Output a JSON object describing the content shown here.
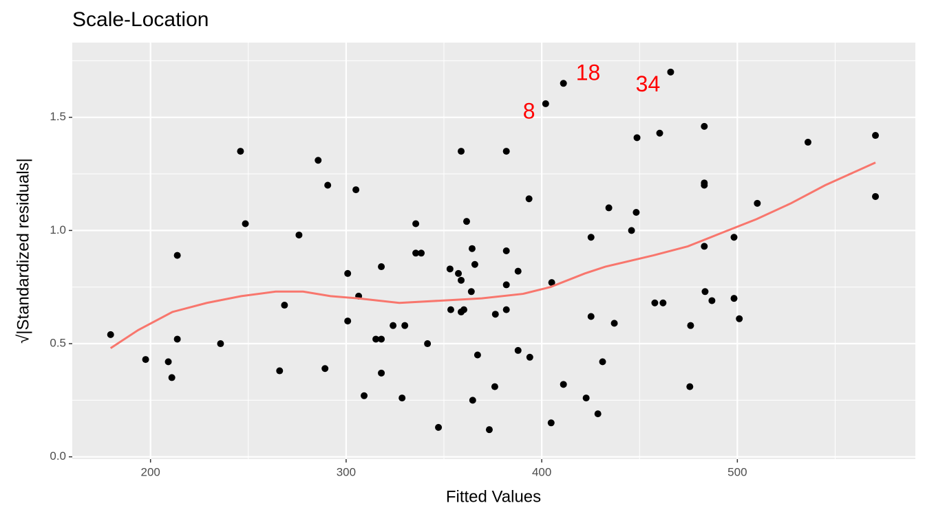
{
  "chart_data": {
    "type": "scatter",
    "title": "Scale-Location",
    "x_label": "Fitted Values",
    "y_label": "√|Standardized residuals|",
    "xlim": [
      160,
      591
    ],
    "ylim": [
      -0.01,
      1.83
    ],
    "xticks": [
      200,
      300,
      400,
      500
    ],
    "yticks": [
      {
        "value": 0,
        "label": "0.0"
      },
      {
        "value": 0.5,
        "label": "0.5"
      },
      {
        "value": 1,
        "label": "1.0"
      },
      {
        "value": 1.5,
        "label": "1.5"
      }
    ],
    "minor_xticks": [
      250,
      350,
      450,
      550
    ],
    "minor_yticks": [
      0.25,
      0.75,
      1.25,
      1.75
    ],
    "grid": true,
    "series": [
      {
        "type": "scatter",
        "color": "#000000",
        "x": [
          179.6,
          197.5,
          209.1,
          210.9,
          213.7,
          213.7,
          235.8,
          246,
          248.5,
          266,
          268.5,
          275.9,
          285.7,
          289.2,
          290.6,
          300.8,
          300.8,
          305,
          306.4,
          309.2,
          315.2,
          318,
          318,
          318,
          324,
          328.6,
          330,
          335.6,
          335.6,
          338.4,
          341.6,
          347.2,
          353.1,
          353.5,
          357.4,
          358.8,
          358.8,
          358.8,
          360.2,
          361.6,
          364,
          364.4,
          364.7,
          365.8,
          367.2,
          373.2,
          376,
          376.3,
          381.9,
          381.9,
          381.9,
          381.9,
          387.9,
          387.9,
          393.5,
          393.9,
          402,
          405.1,
          404.8,
          411.1,
          411.1,
          422.7,
          425.2,
          425.2,
          428.7,
          431.1,
          434.3,
          437.1,
          445.9,
          448.3,
          448.7,
          457.8,
          460.3,
          462,
          465.9,
          475.7,
          476.1,
          483.1,
          483.1,
          483.1,
          483.1,
          483.5,
          487,
          498.3,
          498.3,
          501,
          510.2,
          536.1,
          570.6,
          570.6
        ],
        "values": [
          0.54,
          0.43,
          0.42,
          0.35,
          0.52,
          0.89,
          0.5,
          1.35,
          1.03,
          0.38,
          0.67,
          0.98,
          1.31,
          0.39,
          1.2,
          0.81,
          0.6,
          1.18,
          0.71,
          0.27,
          0.52,
          0.52,
          0.84,
          0.37,
          0.58,
          0.26,
          0.58,
          1.03,
          0.9,
          0.9,
          0.5,
          0.13,
          0.83,
          0.65,
          0.81,
          1.35,
          0.78,
          0.64,
          0.65,
          1.04,
          0.73,
          0.92,
          0.25,
          0.85,
          0.45,
          0.12,
          0.31,
          0.63,
          1.35,
          0.91,
          0.76,
          0.65,
          0.82,
          0.47,
          1.14,
          0.44,
          1.56,
          0.77,
          0.15,
          1.65,
          0.32,
          0.26,
          0.97,
          0.62,
          0.19,
          0.42,
          1.1,
          0.59,
          1,
          1.08,
          1.41,
          0.68,
          1.43,
          0.68,
          1.7,
          0.31,
          0.58,
          1.46,
          1.21,
          1.2,
          0.93,
          0.73,
          0.69,
          0.97,
          0.7,
          0.61,
          1.12,
          1.39,
          1.42,
          1.15
        ]
      },
      {
        "type": "line",
        "color": "#F8766D",
        "x": [
          179.6,
          193.7,
          211.2,
          228.8,
          246.4,
          264,
          278,
          292,
          306.1,
          327.2,
          348.3,
          369.3,
          390.4,
          404.4,
          422,
          432.5,
          457.1,
          474.7,
          492.2,
          509.8,
          527.4,
          544.9,
          570.6
        ],
        "values": [
          0.48,
          0.56,
          0.64,
          0.68,
          0.71,
          0.73,
          0.73,
          0.71,
          0.7,
          0.68,
          0.69,
          0.7,
          0.72,
          0.75,
          0.81,
          0.84,
          0.89,
          0.93,
          0.99,
          1.05,
          1.12,
          1.2,
          1.3
        ]
      }
    ],
    "annotations": [
      {
        "text": "8",
        "x": 393.5,
        "y": 1.52,
        "color": "#FF0000"
      },
      {
        "text": "18",
        "x": 423.7,
        "y": 1.69,
        "color": "#FF0000"
      },
      {
        "text": "34",
        "x": 454.3,
        "y": 1.64,
        "color": "#FF0000"
      }
    ]
  }
}
